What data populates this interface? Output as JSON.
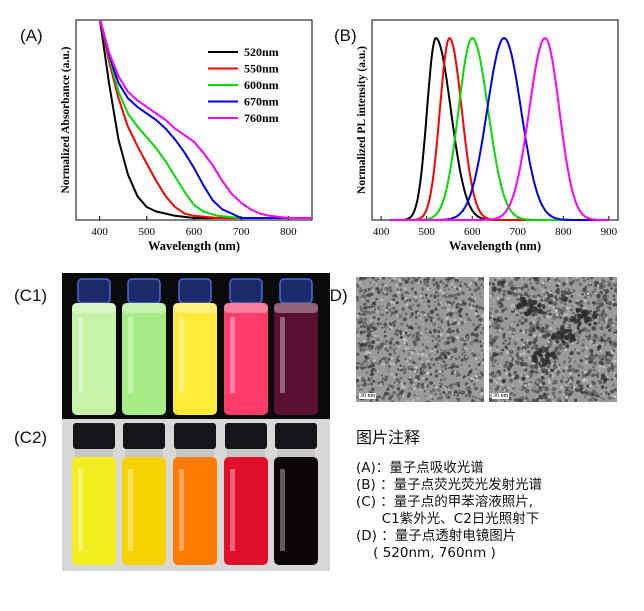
{
  "panels": {
    "a": "(A)",
    "b": "(B)",
    "c1": "(C1)",
    "c2": "(C2)",
    "d": "(D)"
  },
  "chart_data": [
    {
      "type": "line",
      "panel": "A",
      "xlabel": "Wavelength (nm)",
      "ylabel": "Normalized Absorbance (a.u.)",
      "xlim": [
        350,
        850
      ],
      "xticks": [
        400,
        500,
        600,
        700,
        800
      ],
      "yticks_shown": false,
      "legend_placement": "top-right",
      "series": [
        {
          "name": "520nm",
          "color": "#000000",
          "x": [
            400,
            420,
            440,
            460,
            480,
            500,
            520,
            540,
            560,
            600,
            650,
            700,
            850
          ],
          "y": [
            0.92,
            0.62,
            0.36,
            0.2,
            0.1,
            0.05,
            0.03,
            0.02,
            0.01,
            0.0,
            0.0,
            0.0,
            0.0
          ]
        },
        {
          "name": "550nm",
          "color": "#ff0000",
          "x": [
            400,
            420,
            440,
            460,
            480,
            500,
            520,
            540,
            560,
            580,
            600,
            650,
            700,
            850
          ],
          "y": [
            0.92,
            0.72,
            0.55,
            0.42,
            0.33,
            0.25,
            0.17,
            0.1,
            0.05,
            0.02,
            0.01,
            0.0,
            0.0,
            0.0
          ]
        },
        {
          "name": "600nm",
          "color": "#00dd00",
          "x": [
            400,
            420,
            440,
            460,
            480,
            500,
            520,
            540,
            560,
            580,
            600,
            620,
            650,
            700,
            850
          ],
          "y": [
            0.92,
            0.74,
            0.58,
            0.48,
            0.42,
            0.37,
            0.32,
            0.26,
            0.19,
            0.12,
            0.06,
            0.03,
            0.01,
            0.0,
            0.0
          ]
        },
        {
          "name": "670nm",
          "color": "#0000ee",
          "x": [
            400,
            420,
            440,
            460,
            480,
            500,
            520,
            540,
            560,
            580,
            600,
            620,
            640,
            660,
            680,
            700,
            850
          ],
          "y": [
            0.92,
            0.75,
            0.62,
            0.55,
            0.51,
            0.48,
            0.45,
            0.41,
            0.36,
            0.3,
            0.23,
            0.15,
            0.08,
            0.04,
            0.02,
            0.0,
            0.0
          ]
        },
        {
          "name": "760nm",
          "color": "#ff00ff",
          "x": [
            400,
            420,
            440,
            460,
            480,
            500,
            520,
            540,
            560,
            580,
            600,
            620,
            640,
            660,
            680,
            700,
            720,
            740,
            760,
            800,
            850
          ],
          "y": [
            0.92,
            0.76,
            0.65,
            0.58,
            0.54,
            0.51,
            0.48,
            0.45,
            0.41,
            0.38,
            0.35,
            0.3,
            0.24,
            0.17,
            0.11,
            0.07,
            0.04,
            0.02,
            0.01,
            0.0,
            0.0
          ]
        }
      ]
    },
    {
      "type": "line",
      "panel": "B",
      "xlabel": "Wavelength (nm)",
      "ylabel": "Normalized PL intensity (a.u.)",
      "xlim": [
        380,
        920
      ],
      "xticks": [
        400,
        500,
        600,
        700,
        800,
        900
      ],
      "yticks_shown": false,
      "series": [
        {
          "name": "520nm",
          "color": "#000000",
          "peak": 520,
          "width_left": 32,
          "width_right": 55
        },
        {
          "name": "550nm",
          "color": "#ff0000",
          "peak": 550,
          "width_left": 35,
          "width_right": 45
        },
        {
          "name": "600nm",
          "color": "#00dd00",
          "peak": 600,
          "width_left": 50,
          "width_right": 58
        },
        {
          "name": "670nm",
          "color": "#0000ee",
          "peak": 670,
          "width_left": 62,
          "width_right": 62
        },
        {
          "name": "760nm",
          "color": "#ff00ff",
          "peak": 760,
          "width_left": 58,
          "width_right": 52
        }
      ]
    }
  ],
  "tem": {
    "scale_left": "30 nm",
    "scale_right": "30 nm"
  },
  "caption": {
    "title": "图片注释",
    "lines": [
      "(A)：量子点吸收光谱",
      "(B) ：量子点荧光荧光发射光谱",
      "(C) ：量子点的甲苯溶液照片,",
      "      C1紫外光、C2日光照射下",
      "(D) ：量子点透射电镜图片",
      "    ( 520nm, 760nm )"
    ]
  },
  "colors": {
    "vials_uv": [
      "#c6f2a8",
      "#a8ec88",
      "#ffea3a",
      "#ff3c6a",
      "#5a1030"
    ],
    "vials_day": [
      "#f2ee20",
      "#f6d200",
      "#ff7a00",
      "#e0102a",
      "#0c0608"
    ]
  }
}
